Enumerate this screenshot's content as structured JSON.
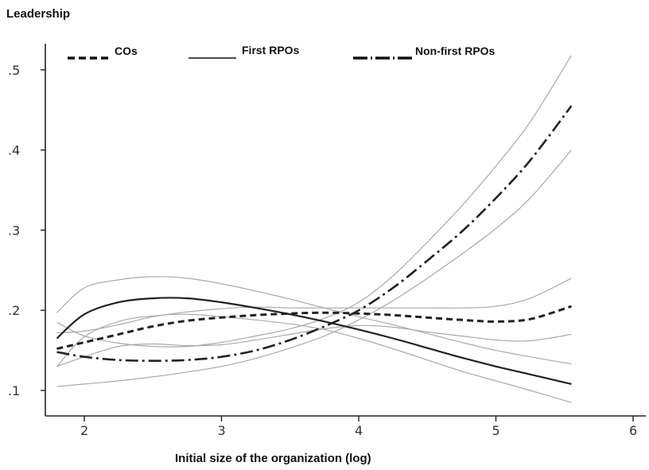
{
  "chart_data": {
    "type": "line",
    "title": "Leadership",
    "xlabel": "Initial size of the organization (log)",
    "ylabel": "",
    "xlim": [
      1.7,
      6.1
    ],
    "ylim": [
      0.07,
      0.545
    ],
    "x_ticks": [
      2,
      3,
      4,
      5,
      6
    ],
    "x_tick_labels": [
      "2",
      "3",
      "4",
      "5",
      "6"
    ],
    "y_ticks": [
      0.1,
      0.2,
      0.3,
      0.4,
      0.5
    ],
    "y_tick_labels": [
      ".1",
      ".2",
      ".3",
      ".4",
      ".5"
    ],
    "grid": false,
    "legend_position": "top",
    "series": [
      {
        "name": "COs",
        "style": "dashed",
        "color": "#222222",
        "x": [
          1.8,
          2.0,
          2.25,
          2.5,
          2.75,
          3.0,
          3.25,
          3.5,
          3.75,
          4.0,
          4.25,
          4.5,
          4.75,
          5.0,
          5.25,
          5.55
        ],
        "y": [
          0.152,
          0.16,
          0.17,
          0.18,
          0.187,
          0.191,
          0.194,
          0.196,
          0.197,
          0.196,
          0.194,
          0.191,
          0.188,
          0.186,
          0.189,
          0.205
        ],
        "ci_lower": [
          0.13,
          0.142,
          0.155,
          0.158,
          0.156,
          0.157,
          0.163,
          0.17,
          0.177,
          0.181,
          0.179,
          0.173,
          0.168,
          0.163,
          0.162,
          0.17
        ],
        "ci_upper": [
          0.172,
          0.174,
          0.182,
          0.192,
          0.198,
          0.202,
          0.204,
          0.203,
          0.203,
          0.203,
          0.203,
          0.203,
          0.203,
          0.205,
          0.215,
          0.24
        ]
      },
      {
        "name": "First RPOs",
        "style": "solid",
        "color": "#222222",
        "x": [
          1.8,
          2.0,
          2.25,
          2.5,
          2.75,
          3.0,
          3.25,
          3.5,
          3.75,
          4.0,
          4.25,
          4.5,
          4.75,
          5.0,
          5.25,
          5.55
        ],
        "y": [
          0.165,
          0.195,
          0.21,
          0.215,
          0.215,
          0.21,
          0.203,
          0.195,
          0.186,
          0.176,
          0.165,
          0.153,
          0.141,
          0.13,
          0.12,
          0.108
        ],
        "ci_lower": [
          0.13,
          0.167,
          0.186,
          0.193,
          0.195,
          0.192,
          0.188,
          0.183,
          0.176,
          0.165,
          0.152,
          0.138,
          0.124,
          0.112,
          0.1,
          0.085
        ],
        "ci_upper": [
          0.197,
          0.228,
          0.238,
          0.242,
          0.24,
          0.233,
          0.224,
          0.214,
          0.203,
          0.192,
          0.182,
          0.171,
          0.16,
          0.15,
          0.142,
          0.133
        ]
      },
      {
        "name": "Non-first RPOs",
        "style": "dashdot",
        "color": "#222222",
        "x": [
          1.8,
          2.0,
          2.25,
          2.5,
          2.75,
          3.0,
          3.25,
          3.5,
          3.75,
          4.0,
          4.25,
          4.5,
          4.75,
          5.0,
          5.25,
          5.55
        ],
        "y": [
          0.148,
          0.142,
          0.138,
          0.137,
          0.138,
          0.142,
          0.15,
          0.163,
          0.18,
          0.2,
          0.228,
          0.262,
          0.298,
          0.34,
          0.387,
          0.455
        ],
        "ci_lower": [
          0.105,
          0.108,
          0.112,
          0.117,
          0.123,
          0.13,
          0.14,
          0.153,
          0.168,
          0.188,
          0.212,
          0.24,
          0.27,
          0.302,
          0.34,
          0.4
        ],
        "ci_upper": [
          0.185,
          0.168,
          0.159,
          0.155,
          0.155,
          0.16,
          0.168,
          0.177,
          0.19,
          0.21,
          0.243,
          0.285,
          0.33,
          0.38,
          0.435,
          0.518
        ]
      }
    ]
  }
}
